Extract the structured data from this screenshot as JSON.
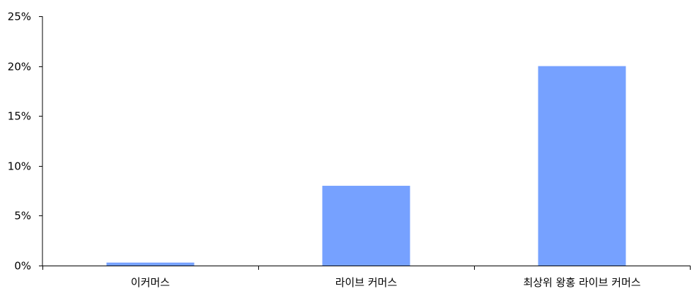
{
  "chart_data": {
    "type": "bar",
    "title": "",
    "xlabel": "",
    "ylabel": "",
    "categories": [
      "이커머스",
      "라이브 커머스",
      "최상위 왕홍 라이브 커머스"
    ],
    "values": [
      0.3,
      8,
      20
    ],
    "unit": "%",
    "ylim": [
      0,
      25
    ],
    "yticks": [
      0,
      5,
      10,
      15,
      20,
      25
    ],
    "ytick_labels": [
      "0%",
      "5%",
      "10%",
      "15%",
      "20%",
      "25%"
    ],
    "grid": false,
    "legend": "none",
    "bar_color": "#76a1ff",
    "axis_color": "#000000"
  }
}
